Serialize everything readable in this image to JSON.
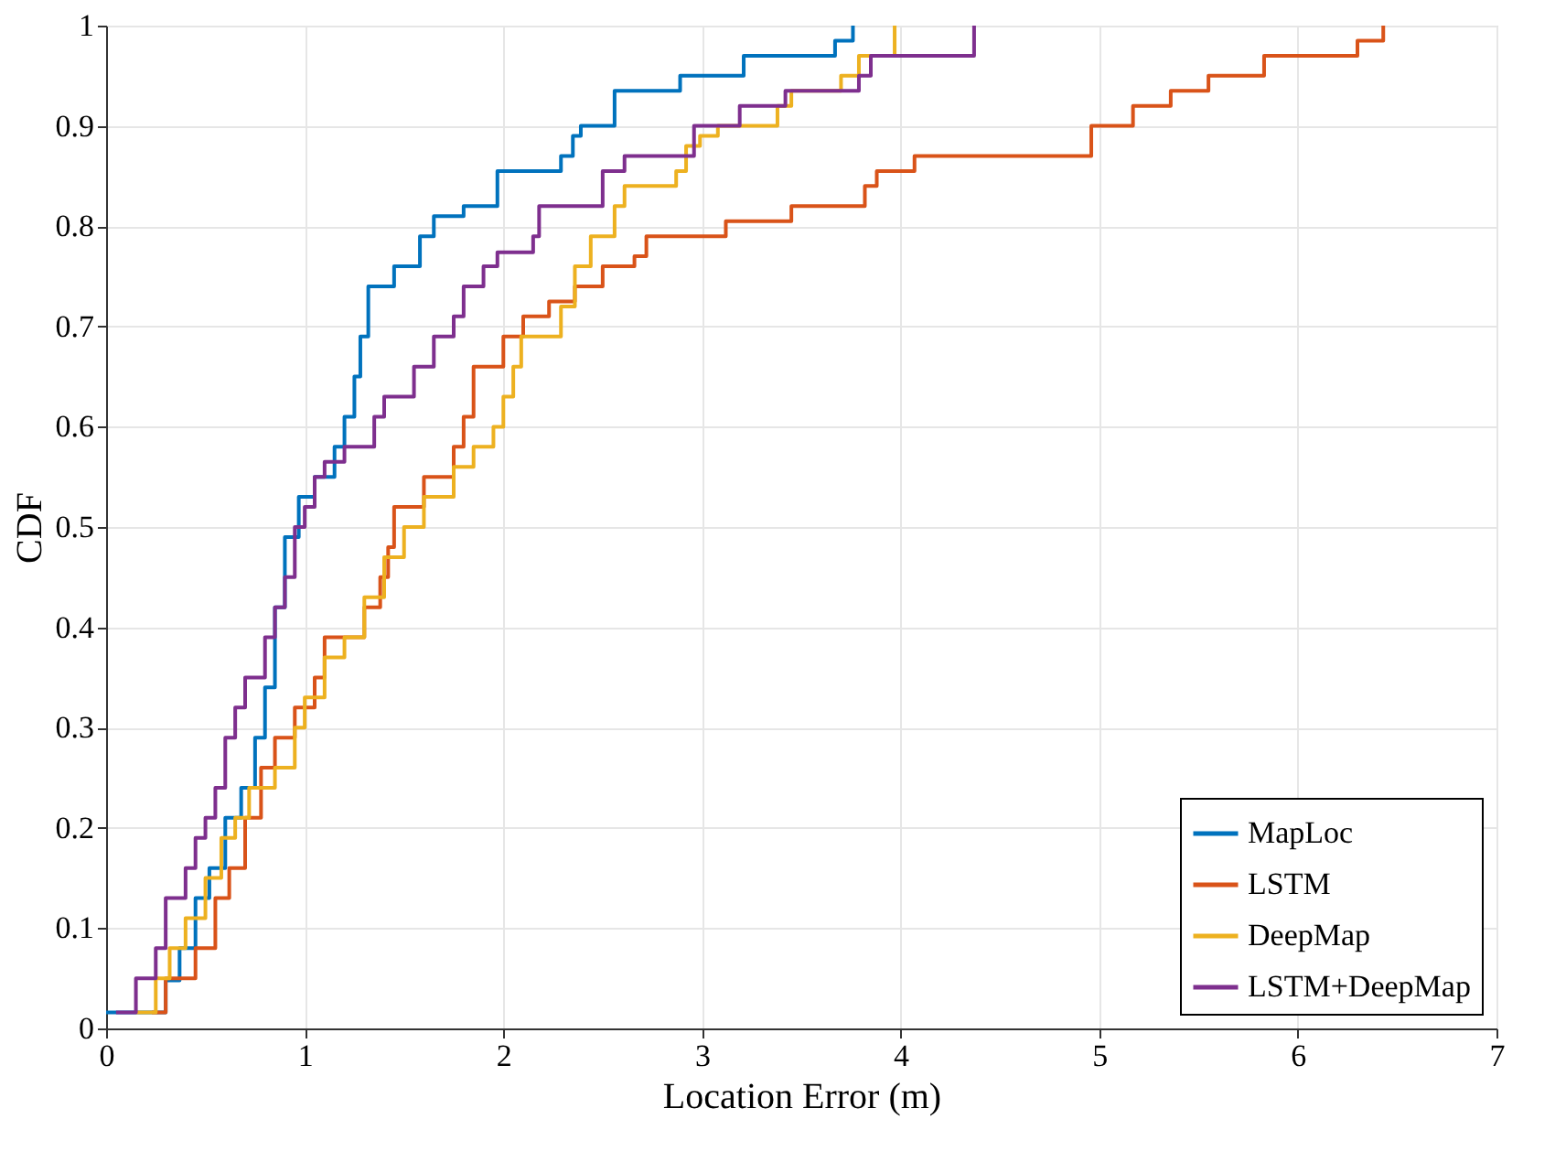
{
  "chart_data": {
    "type": "step",
    "xlabel": "Location Error (m)",
    "ylabel": "CDF",
    "xlim": [
      0,
      7
    ],
    "ylim": [
      0,
      1
    ],
    "xticks": [
      0,
      1,
      2,
      3,
      4,
      5,
      6,
      7
    ],
    "yticks": [
      0,
      0.1,
      0.2,
      0.3,
      0.4,
      0.5,
      0.6,
      0.7,
      0.8,
      0.9,
      1
    ],
    "grid": true,
    "legend": "bottom right",
    "marker": "none",
    "line_style": "solid",
    "series": [
      {
        "name": "MapLoc",
        "color": "#0072bd",
        "x": [
          0,
          0.3,
          0.37,
          0.45,
          0.52,
          0.6,
          0.68,
          0.75,
          0.8,
          0.85,
          0.9,
          0.97,
          1.05,
          1.15,
          1.2,
          1.25,
          1.28,
          1.32,
          1.45,
          1.58,
          1.65,
          1.8,
          1.97,
          2.29,
          2.35,
          2.39,
          2.56,
          2.89,
          3.21,
          3.67,
          3.76
        ],
        "values": [
          0.016,
          0.048,
          0.08,
          0.13,
          0.16,
          0.21,
          0.24,
          0.29,
          0.34,
          0.42,
          0.49,
          0.53,
          0.55,
          0.58,
          0.61,
          0.65,
          0.69,
          0.74,
          0.76,
          0.79,
          0.81,
          0.82,
          0.855,
          0.87,
          0.89,
          0.9,
          0.935,
          0.95,
          0.97,
          0.985,
          1.0
        ]
      },
      {
        "name": "LSTM",
        "color": "#d95319",
        "x": [
          0.23,
          0.3,
          0.45,
          0.55,
          0.62,
          0.7,
          0.78,
          0.85,
          0.95,
          1.05,
          1.1,
          1.3,
          1.38,
          1.42,
          1.45,
          1.6,
          1.75,
          1.8,
          1.85,
          2.0,
          2.1,
          2.23,
          2.36,
          2.5,
          2.66,
          2.72,
          3.12,
          3.45,
          3.82,
          3.88,
          4.07,
          4.96,
          5.17,
          5.36,
          5.55,
          5.83,
          6.3,
          6.43
        ],
        "values": [
          0.016,
          0.05,
          0.08,
          0.13,
          0.16,
          0.21,
          0.26,
          0.29,
          0.32,
          0.35,
          0.39,
          0.42,
          0.45,
          0.48,
          0.52,
          0.55,
          0.58,
          0.61,
          0.66,
          0.69,
          0.71,
          0.725,
          0.74,
          0.76,
          0.77,
          0.79,
          0.805,
          0.82,
          0.84,
          0.855,
          0.87,
          0.9,
          0.92,
          0.935,
          0.95,
          0.97,
          0.985,
          1.0
        ]
      },
      {
        "name": "DeepMap",
        "color": "#edb120",
        "x": [
          0.15,
          0.25,
          0.32,
          0.4,
          0.5,
          0.58,
          0.65,
          0.72,
          0.85,
          0.95,
          1.0,
          1.1,
          1.2,
          1.3,
          1.4,
          1.5,
          1.6,
          1.75,
          1.85,
          1.95,
          2.0,
          2.05,
          2.09,
          2.29,
          2.36,
          2.44,
          2.56,
          2.61,
          2.87,
          2.92,
          2.99,
          3.08,
          3.38,
          3.45,
          3.7,
          3.79,
          3.97
        ],
        "values": [
          0.016,
          0.05,
          0.08,
          0.11,
          0.15,
          0.19,
          0.21,
          0.24,
          0.26,
          0.3,
          0.33,
          0.37,
          0.39,
          0.43,
          0.47,
          0.5,
          0.53,
          0.56,
          0.58,
          0.6,
          0.63,
          0.66,
          0.69,
          0.72,
          0.76,
          0.79,
          0.82,
          0.84,
          0.855,
          0.88,
          0.89,
          0.9,
          0.92,
          0.935,
          0.95,
          0.97,
          1.0
        ]
      },
      {
        "name": "LSTM+DeepMap",
        "color": "#7e2f8e",
        "x": [
          0.05,
          0.15,
          0.25,
          0.3,
          0.4,
          0.45,
          0.5,
          0.55,
          0.6,
          0.65,
          0.7,
          0.8,
          0.85,
          0.9,
          0.95,
          1.0,
          1.05,
          1.1,
          1.2,
          1.35,
          1.4,
          1.55,
          1.65,
          1.75,
          1.8,
          1.9,
          1.97,
          2.15,
          2.18,
          2.5,
          2.61,
          2.96,
          3.19,
          3.42,
          3.79,
          3.85,
          4.37
        ],
        "values": [
          0.016,
          0.05,
          0.08,
          0.13,
          0.16,
          0.19,
          0.21,
          0.24,
          0.29,
          0.32,
          0.35,
          0.39,
          0.42,
          0.45,
          0.5,
          0.52,
          0.55,
          0.565,
          0.58,
          0.61,
          0.63,
          0.66,
          0.69,
          0.71,
          0.74,
          0.76,
          0.774,
          0.79,
          0.82,
          0.855,
          0.87,
          0.9,
          0.92,
          0.935,
          0.95,
          0.97,
          1.0
        ]
      }
    ]
  }
}
